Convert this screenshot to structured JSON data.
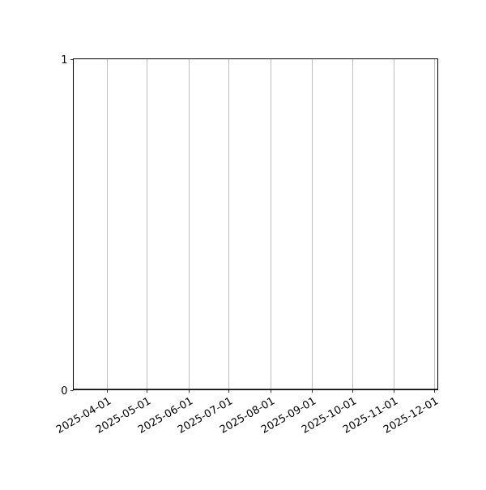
{
  "chart_data": {
    "type": "line",
    "title": "",
    "xlabel": "",
    "ylabel": "",
    "xlim": [
      "2025-03-07",
      "2025-12-04"
    ],
    "ylim": [
      0,
      1
    ],
    "x_ticks": [
      "2025-04-01",
      "2025-05-01",
      "2025-06-01",
      "2025-07-01",
      "2025-08-01",
      "2025-09-01",
      "2025-10-01",
      "2025-11-01",
      "2025-12-01"
    ],
    "y_ticks": [
      "0",
      "1"
    ],
    "grid": "vertical",
    "series": [
      {
        "x": [
          "2025-03-07",
          "2025-12-04"
        ],
        "y": [
          0,
          0
        ],
        "color": "#0000cc"
      }
    ],
    "colors": {
      "grid": "#b0b0b0",
      "axes": "#000000"
    }
  }
}
